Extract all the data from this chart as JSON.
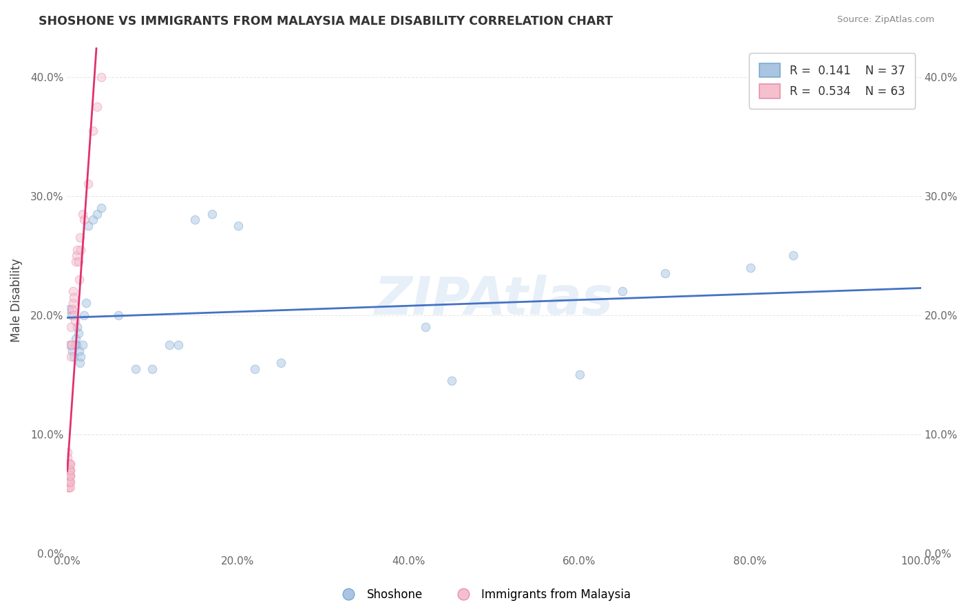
{
  "title": "SHOSHONE VS IMMIGRANTS FROM MALAYSIA MALE DISABILITY CORRELATION CHART",
  "source": "Source: ZipAtlas.com",
  "ylabel": "Male Disability",
  "watermark": "ZIPAtlas",
  "shoshone_R": 0.141,
  "shoshone_N": 37,
  "malaysia_R": 0.534,
  "malaysia_N": 63,
  "shoshone_color": "#aac4e2",
  "shoshone_edge": "#7aaad0",
  "malaysia_color": "#f5bfce",
  "malaysia_edge": "#e890aa",
  "blue_line": "#4472c4",
  "pink_line": "#e03070",
  "shoshone_x": [
    0.002,
    0.003,
    0.005,
    0.006,
    0.008,
    0.009,
    0.01,
    0.011,
    0.012,
    0.013,
    0.014,
    0.015,
    0.016,
    0.018,
    0.02,
    0.022,
    0.025,
    0.03,
    0.035,
    0.04,
    0.06,
    0.08,
    0.1,
    0.12,
    0.13,
    0.15,
    0.17,
    0.2,
    0.22,
    0.25,
    0.42,
    0.45,
    0.6,
    0.65,
    0.7,
    0.8,
    0.85
  ],
  "shoshone_y": [
    0.205,
    0.175,
    0.2,
    0.17,
    0.165,
    0.175,
    0.18,
    0.175,
    0.19,
    0.185,
    0.17,
    0.16,
    0.165,
    0.175,
    0.2,
    0.21,
    0.275,
    0.28,
    0.285,
    0.29,
    0.2,
    0.155,
    0.155,
    0.175,
    0.175,
    0.28,
    0.285,
    0.275,
    0.155,
    0.16,
    0.19,
    0.145,
    0.15,
    0.22,
    0.235,
    0.24,
    0.25
  ],
  "malaysia_x": [
    0.0002,
    0.0003,
    0.0004,
    0.0005,
    0.0006,
    0.0007,
    0.0008,
    0.0009,
    0.001,
    0.0011,
    0.0012,
    0.0013,
    0.0014,
    0.0015,
    0.0016,
    0.0017,
    0.0018,
    0.0019,
    0.002,
    0.0021,
    0.0022,
    0.0023,
    0.0024,
    0.0025,
    0.0026,
    0.0027,
    0.0028,
    0.0029,
    0.003,
    0.0031,
    0.0032,
    0.0033,
    0.0034,
    0.0035,
    0.0036,
    0.0037,
    0.0038,
    0.0039,
    0.004,
    0.0042,
    0.0045,
    0.0048,
    0.005,
    0.0055,
    0.006,
    0.0065,
    0.007,
    0.0075,
    0.008,
    0.009,
    0.01,
    0.011,
    0.012,
    0.013,
    0.014,
    0.015,
    0.016,
    0.018,
    0.02,
    0.025,
    0.03,
    0.035,
    0.04
  ],
  "malaysia_y": [
    0.085,
    0.07,
    0.065,
    0.075,
    0.08,
    0.06,
    0.07,
    0.065,
    0.06,
    0.075,
    0.065,
    0.06,
    0.055,
    0.065,
    0.07,
    0.06,
    0.065,
    0.07,
    0.06,
    0.055,
    0.065,
    0.07,
    0.06,
    0.065,
    0.07,
    0.06,
    0.065,
    0.075,
    0.06,
    0.065,
    0.06,
    0.055,
    0.065,
    0.07,
    0.075,
    0.06,
    0.065,
    0.07,
    0.075,
    0.165,
    0.175,
    0.19,
    0.205,
    0.175,
    0.205,
    0.22,
    0.21,
    0.2,
    0.215,
    0.195,
    0.245,
    0.25,
    0.255,
    0.245,
    0.23,
    0.265,
    0.255,
    0.285,
    0.28,
    0.31,
    0.355,
    0.375,
    0.4
  ],
  "xlim": [
    0.0,
    1.0
  ],
  "ylim": [
    0.0,
    0.425
  ],
  "yticks": [
    0.0,
    0.1,
    0.2,
    0.3,
    0.4
  ],
  "xticks": [
    0.0,
    0.2,
    0.4,
    0.6,
    0.8,
    1.0
  ],
  "grid_color": "#e8e8e8",
  "marker_size": 80,
  "marker_alpha": 0.5
}
